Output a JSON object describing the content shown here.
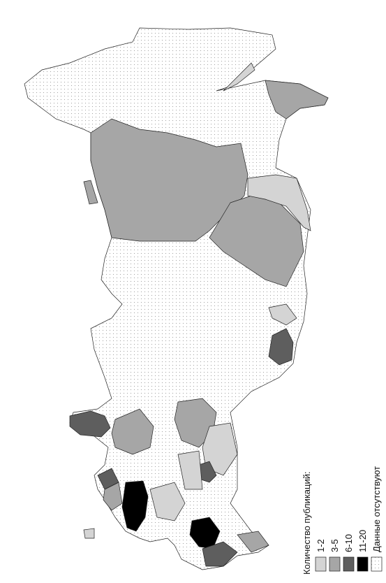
{
  "legend": {
    "title": "Количество публикаций:",
    "items": [
      {
        "label": "1-2",
        "color": "#d4d4d4"
      },
      {
        "label": "3-5",
        "color": "#a6a6a6"
      },
      {
        "label": "6-10",
        "color": "#5e5e5e"
      },
      {
        "label": "11-20",
        "color": "#000000"
      },
      {
        "label": "Данные отсутствуют",
        "color": "url(#dots)"
      }
    ]
  }
}
